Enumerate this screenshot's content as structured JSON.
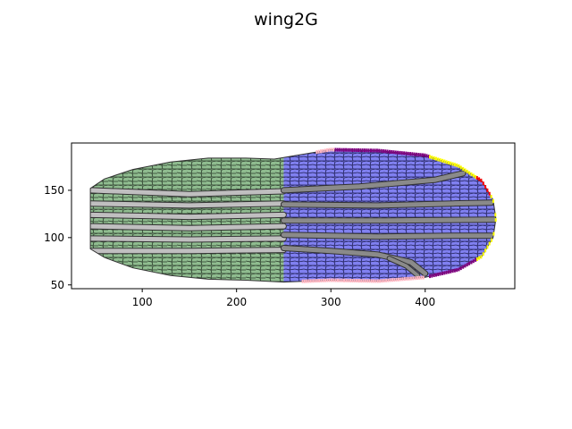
{
  "chart_data": {
    "type": "heatmap",
    "title": "wing2G",
    "xlabel": "",
    "ylabel": "",
    "xlim": [
      25,
      495
    ],
    "ylim": [
      46,
      200
    ],
    "xticks": [
      100,
      200,
      300,
      400
    ],
    "yticks": [
      50,
      100,
      150
    ],
    "grid": false,
    "wing_outline": {
      "upper": [
        [
          45,
          152
        ],
        [
          60,
          162
        ],
        [
          90,
          172
        ],
        [
          130,
          180
        ],
        [
          170,
          184
        ],
        [
          210,
          184
        ],
        [
          240,
          183
        ],
        [
          300,
          193
        ],
        [
          350,
          192
        ],
        [
          400,
          187
        ],
        [
          435,
          176
        ],
        [
          460,
          160
        ],
        [
          472,
          140
        ],
        [
          475,
          120
        ]
      ],
      "lower": [
        [
          45,
          88
        ],
        [
          60,
          79
        ],
        [
          90,
          68
        ],
        [
          130,
          60
        ],
        [
          170,
          56
        ],
        [
          210,
          55
        ],
        [
          250,
          53
        ],
        [
          300,
          55
        ],
        [
          350,
          54
        ],
        [
          400,
          58
        ],
        [
          435,
          66
        ],
        [
          460,
          80
        ],
        [
          472,
          100
        ],
        [
          475,
          120
        ]
      ]
    },
    "regions": [
      {
        "name": "green",
        "color": "#8fbc8f",
        "x_range": [
          45,
          250
        ]
      },
      {
        "name": "blue",
        "color": "#8080f0",
        "x_range": [
          250,
          476
        ]
      }
    ],
    "veins": [
      {
        "color": "#c0bfc0",
        "points": [
          [
            45,
            150
          ],
          [
            150,
            146
          ],
          [
            250,
            149
          ]
        ],
        "width": 5
      },
      {
        "color": "#c0bfc0",
        "points": [
          [
            45,
            136
          ],
          [
            150,
            134
          ],
          [
            250,
            136
          ]
        ],
        "width": 5
      },
      {
        "color": "#c0bfc0",
        "points": [
          [
            45,
            124
          ],
          [
            150,
            122
          ],
          [
            250,
            124
          ]
        ],
        "width": 5
      },
      {
        "color": "#c0bfc0",
        "points": [
          [
            45,
            112
          ],
          [
            150,
            110
          ],
          [
            250,
            112
          ]
        ],
        "width": 5
      },
      {
        "color": "#c0bfc0",
        "points": [
          [
            45,
            99
          ],
          [
            150,
            98
          ],
          [
            250,
            99
          ]
        ],
        "width": 5
      },
      {
        "color": "#c0bfc0",
        "points": [
          [
            45,
            86
          ],
          [
            150,
            86
          ],
          [
            250,
            87
          ]
        ],
        "width": 5
      },
      {
        "color": "#8a8a8a",
        "points": [
          [
            250,
            150
          ],
          [
            330,
            154
          ],
          [
            410,
            161
          ],
          [
            440,
            168
          ]
        ],
        "width": 5
      },
      {
        "color": "#8a8a8a",
        "points": [
          [
            250,
            135
          ],
          [
            350,
            134
          ],
          [
            430,
            136
          ],
          [
            470,
            137
          ]
        ],
        "width": 5
      },
      {
        "color": "#8a8a8a",
        "points": [
          [
            250,
            118
          ],
          [
            360,
            118
          ],
          [
            475,
            119
          ]
        ],
        "width": 5
      },
      {
        "color": "#8a8a8a",
        "points": [
          [
            250,
            103
          ],
          [
            350,
            101
          ],
          [
            430,
            102
          ],
          [
            470,
            102
          ]
        ],
        "width": 5
      },
      {
        "color": "#8a8a8a",
        "points": [
          [
            250,
            89
          ],
          [
            300,
            86
          ],
          [
            350,
            82
          ],
          [
            385,
            74
          ],
          [
            400,
            62
          ]
        ],
        "width": 5
      },
      {
        "color": "#8a8a8a",
        "points": [
          [
            362,
            78
          ],
          [
            380,
            70
          ],
          [
            392,
            60
          ]
        ],
        "width": 4
      }
    ],
    "boundary_markers": [
      {
        "color": "#ffb6c1",
        "x_range": [
          270,
          330
        ],
        "side": "lower"
      },
      {
        "color": "#ffb6c1",
        "x_range": [
          330,
          400
        ],
        "side": "lower"
      },
      {
        "color": "#ffb6c1",
        "x_range": [
          285,
          305
        ],
        "side": "upper"
      },
      {
        "color": "#800080",
        "x_range": [
          305,
          405
        ],
        "side": "upper"
      },
      {
        "color": "#ffff00",
        "x_range": [
          405,
          455
        ],
        "side": "upper"
      },
      {
        "color": "#ff0000",
        "x_range": [
          455,
          470
        ],
        "side": "upper"
      },
      {
        "color": "#ffff00",
        "x_range": [
          470,
          476
        ],
        "side": "upper"
      },
      {
        "color": "#ffff00",
        "x_range": [
          455,
          476
        ],
        "side": "lower"
      },
      {
        "color": "#800080",
        "x_range": [
          405,
          455
        ],
        "side": "lower"
      }
    ]
  }
}
